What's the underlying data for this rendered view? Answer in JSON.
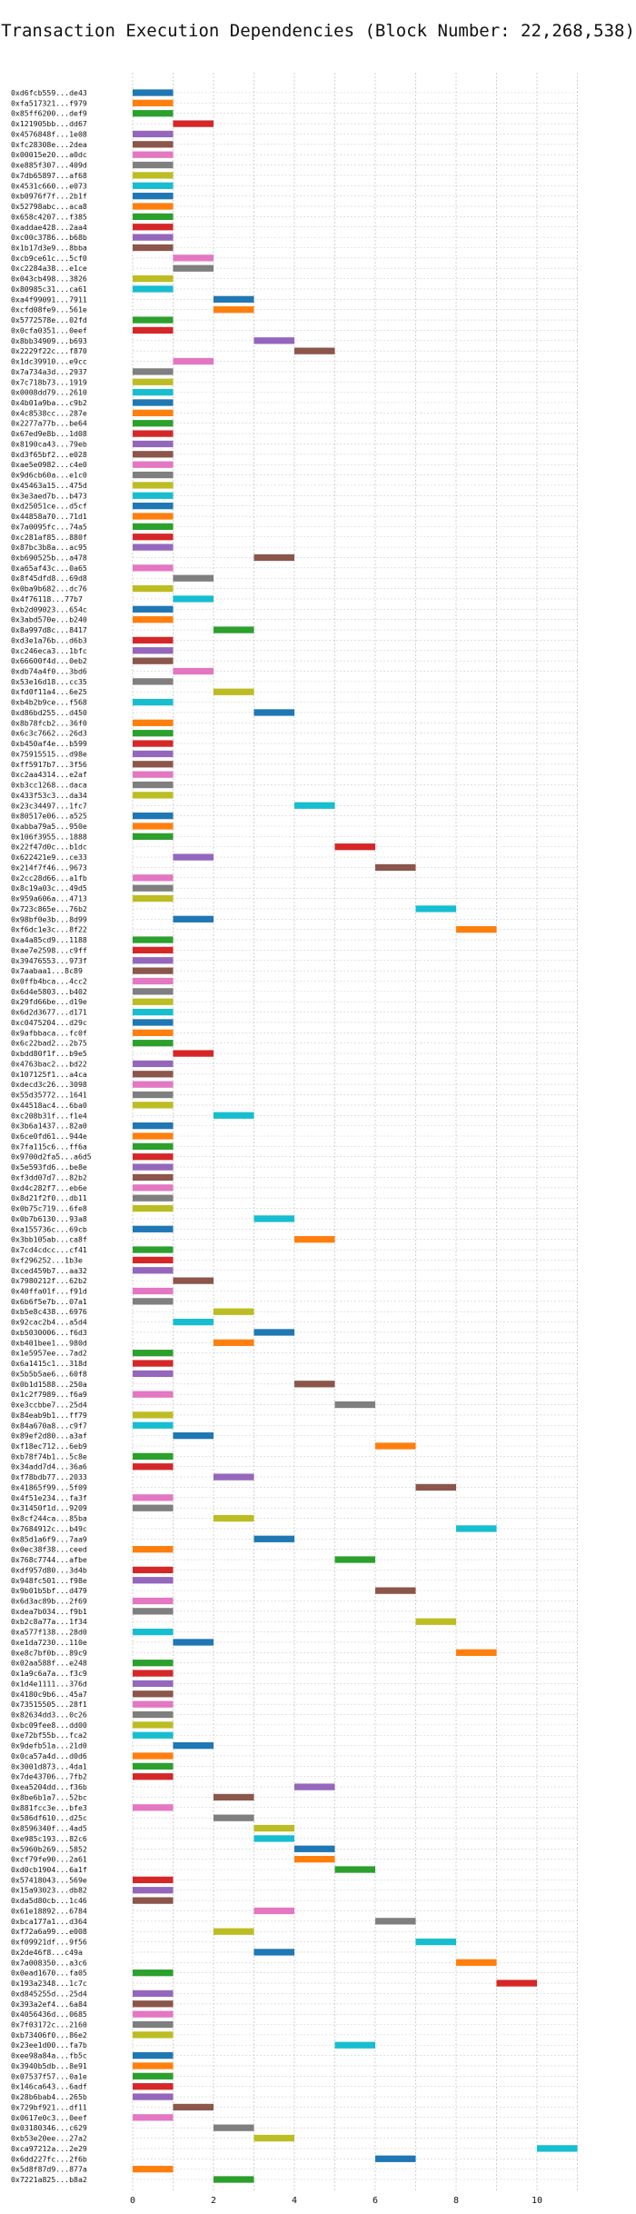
{
  "chart_data": {
    "type": "bar",
    "title": "Transaction Execution Dependencies (Block Number: 22,268,538)",
    "xlabel": "",
    "ylabel": "",
    "xlim": [
      0,
      11
    ],
    "xticks": [
      0,
      2,
      4,
      6,
      8,
      10
    ],
    "grid": true,
    "palette": [
      "#1f77b4",
      "#ff7f0e",
      "#2ca02c",
      "#d62728",
      "#9467bd",
      "#8c564b",
      "#e377c2",
      "#7f7f7f",
      "#bcbd22",
      "#17becf"
    ],
    "transactions": [
      {
        "label": "0xd6fcb559...de43",
        "start": 0,
        "end": 1
      },
      {
        "label": "0xfa517321...f979",
        "start": 0,
        "end": 1
      },
      {
        "label": "0x85ff6200...def9",
        "start": 0,
        "end": 1
      },
      {
        "label": "0x121905bb...dd67",
        "start": 1,
        "end": 2
      },
      {
        "label": "0x4576848f...1e08",
        "start": 0,
        "end": 1
      },
      {
        "label": "0xfc28308e...2dea",
        "start": 0,
        "end": 1
      },
      {
        "label": "0x00015e20...a0dc",
        "start": 0,
        "end": 1
      },
      {
        "label": "0xe885f307...409d",
        "start": 0,
        "end": 1
      },
      {
        "label": "0x7db65897...af68",
        "start": 0,
        "end": 1
      },
      {
        "label": "0x4531c660...e073",
        "start": 0,
        "end": 1
      },
      {
        "label": "0xb0976f7f...2b1f",
        "start": 0,
        "end": 1
      },
      {
        "label": "0x52798abc...aca8",
        "start": 0,
        "end": 1
      },
      {
        "label": "0x658c4207...f385",
        "start": 0,
        "end": 1
      },
      {
        "label": "0xaddae428...2aa4",
        "start": 0,
        "end": 1
      },
      {
        "label": "0xc00c3786...b68b",
        "start": 0,
        "end": 1
      },
      {
        "label": "0x1b17d3e9...8bba",
        "start": 0,
        "end": 1
      },
      {
        "label": "0xcb9ce61c...5cf0",
        "start": 1,
        "end": 2
      },
      {
        "label": "0xc2284a38...e1ce",
        "start": 1,
        "end": 2
      },
      {
        "label": "0x043cb498...3826",
        "start": 0,
        "end": 1
      },
      {
        "label": "0x80985c31...ca61",
        "start": 0,
        "end": 1
      },
      {
        "label": "0xa4f99091...7911",
        "start": 2,
        "end": 3
      },
      {
        "label": "0xcfd08fe9...561e",
        "start": 2,
        "end": 3
      },
      {
        "label": "0x5772578e...02fd",
        "start": 0,
        "end": 1
      },
      {
        "label": "0x0cfa0351...0eef",
        "start": 0,
        "end": 1
      },
      {
        "label": "0x8bb34909...b693",
        "start": 3,
        "end": 4
      },
      {
        "label": "0x2229f22c...f870",
        "start": 4,
        "end": 5
      },
      {
        "label": "0x1dc39910...e9cc",
        "start": 1,
        "end": 2
      },
      {
        "label": "0x7a734a3d...2937",
        "start": 0,
        "end": 1
      },
      {
        "label": "0x7c718b73...1919",
        "start": 0,
        "end": 1
      },
      {
        "label": "0x0008dd79...2610",
        "start": 0,
        "end": 1
      },
      {
        "label": "0x4b01a9ba...c9b2",
        "start": 0,
        "end": 1
      },
      {
        "label": "0x4c8538cc...287e",
        "start": 0,
        "end": 1
      },
      {
        "label": "0x2277a77b...be64",
        "start": 0,
        "end": 1
      },
      {
        "label": "0x67ed9e8b...1d08",
        "start": 0,
        "end": 1
      },
      {
        "label": "0x8190ca43...79eb",
        "start": 0,
        "end": 1
      },
      {
        "label": "0xd3f65bf2...e028",
        "start": 0,
        "end": 1
      },
      {
        "label": "0xae5e0982...c4e0",
        "start": 0,
        "end": 1
      },
      {
        "label": "0x9d6cb60a...e1c0",
        "start": 0,
        "end": 1
      },
      {
        "label": "0x45463a15...475d",
        "start": 0,
        "end": 1
      },
      {
        "label": "0x3e3aed7b...b473",
        "start": 0,
        "end": 1
      },
      {
        "label": "0xd25051ce...d5cf",
        "start": 0,
        "end": 1
      },
      {
        "label": "0x44858a70...71d1",
        "start": 0,
        "end": 1
      },
      {
        "label": "0x7a0095fc...74a5",
        "start": 0,
        "end": 1
      },
      {
        "label": "0xc281af85...880f",
        "start": 0,
        "end": 1
      },
      {
        "label": "0x87bc3b8a...ac95",
        "start": 0,
        "end": 1
      },
      {
        "label": "0xb690525b...a478",
        "start": 3,
        "end": 4
      },
      {
        "label": "0xa65af43c...0a65",
        "start": 0,
        "end": 1
      },
      {
        "label": "0x8f45dfd8...69d8",
        "start": 1,
        "end": 2
      },
      {
        "label": "0x0ba9b682...dc76",
        "start": 0,
        "end": 1
      },
      {
        "label": "0x4f76118...77b7",
        "start": 1,
        "end": 2
      },
      {
        "label": "0xb2d09023...654c",
        "start": 0,
        "end": 1
      },
      {
        "label": "0x3abd570e...b240",
        "start": 0,
        "end": 1
      },
      {
        "label": "0x8a997d8c...8417",
        "start": 2,
        "end": 3
      },
      {
        "label": "0xd3e1a76b...d6b3",
        "start": 0,
        "end": 1
      },
      {
        "label": "0xc246eca3...1bfc",
        "start": 0,
        "end": 1
      },
      {
        "label": "0x66600f4d...0eb2",
        "start": 0,
        "end": 1
      },
      {
        "label": "0xdb74a4f0...3bd6",
        "start": 1,
        "end": 2
      },
      {
        "label": "0x53e16d18...cc35",
        "start": 0,
        "end": 1
      },
      {
        "label": "0xfd0f11a4...6e25",
        "start": 2,
        "end": 3
      },
      {
        "label": "0xb4b2b9ce...f568",
        "start": 0,
        "end": 1
      },
      {
        "label": "0xd86bd255...d450",
        "start": 3,
        "end": 4
      },
      {
        "label": "0x8b78fcb2...36f0",
        "start": 0,
        "end": 1
      },
      {
        "label": "0x6c3c7662...26d3",
        "start": 0,
        "end": 1
      },
      {
        "label": "0xb450af4e...b599",
        "start": 0,
        "end": 1
      },
      {
        "label": "0x75915515...d98e",
        "start": 0,
        "end": 1
      },
      {
        "label": "0xff5917b7...3f56",
        "start": 0,
        "end": 1
      },
      {
        "label": "0xc2aa4314...e2af",
        "start": 0,
        "end": 1
      },
      {
        "label": "0xb3cc1268...daca",
        "start": 0,
        "end": 1
      },
      {
        "label": "0x433f53c3...da34",
        "start": 0,
        "end": 1
      },
      {
        "label": "0x23c34497...1fc7",
        "start": 4,
        "end": 5
      },
      {
        "label": "0x80517e06...a525",
        "start": 0,
        "end": 1
      },
      {
        "label": "0xabba79a5...950e",
        "start": 0,
        "end": 1
      },
      {
        "label": "0x106f3955...1888",
        "start": 0,
        "end": 1
      },
      {
        "label": "0x22f47d0c...b1dc",
        "start": 5,
        "end": 6
      },
      {
        "label": "0x622421e9...ce33",
        "start": 1,
        "end": 2
      },
      {
        "label": "0x214f7f46...9673",
        "start": 6,
        "end": 7
      },
      {
        "label": "0x2cc28d66...a1fb",
        "start": 0,
        "end": 1
      },
      {
        "label": "0x8c19a03c...49d5",
        "start": 0,
        "end": 1
      },
      {
        "label": "0x959a606a...4713",
        "start": 0,
        "end": 1
      },
      {
        "label": "0x723c865e...76b2",
        "start": 7,
        "end": 8
      },
      {
        "label": "0x98bf0e3b...8d99",
        "start": 1,
        "end": 2
      },
      {
        "label": "0xf6dc1e3c...8f22",
        "start": 8,
        "end": 9
      },
      {
        "label": "0xa4a85cd9...1188",
        "start": 0,
        "end": 1
      },
      {
        "label": "0xae7e2598...c9ff",
        "start": 0,
        "end": 1
      },
      {
        "label": "0x39476553...973f",
        "start": 0,
        "end": 1
      },
      {
        "label": "0x7aabaa1...8c89",
        "start": 0,
        "end": 1
      },
      {
        "label": "0x0ffb4bca...4cc2",
        "start": 0,
        "end": 1
      },
      {
        "label": "0x6d4e5803...b402",
        "start": 0,
        "end": 1
      },
      {
        "label": "0x29fd66be...d19e",
        "start": 0,
        "end": 1
      },
      {
        "label": "0x6d2d3677...d171",
        "start": 0,
        "end": 1
      },
      {
        "label": "0xc0475204...d29c",
        "start": 0,
        "end": 1
      },
      {
        "label": "0x9afbbaca...fc0f",
        "start": 0,
        "end": 1
      },
      {
        "label": "0x6c22bad2...2b75",
        "start": 0,
        "end": 1
      },
      {
        "label": "0xbdd80f1f...b9e5",
        "start": 1,
        "end": 2
      },
      {
        "label": "0x4763bac2...bd22",
        "start": 0,
        "end": 1
      },
      {
        "label": "0x107125f1...a4ca",
        "start": 0,
        "end": 1
      },
      {
        "label": "0xdecd3c26...3098",
        "start": 0,
        "end": 1
      },
      {
        "label": "0x55d35772...1641",
        "start": 0,
        "end": 1
      },
      {
        "label": "0x44518ac4...6ba0",
        "start": 0,
        "end": 1
      },
      {
        "label": "0xc208b31f...f1e4",
        "start": 2,
        "end": 3
      },
      {
        "label": "0x3b6a1437...82a0",
        "start": 0,
        "end": 1
      },
      {
        "label": "0x6ce0fd61...944e",
        "start": 0,
        "end": 1
      },
      {
        "label": "0x7fa115c6...ff6a",
        "start": 0,
        "end": 1
      },
      {
        "label": "0x9700d2fa5...a6d5",
        "start": 0,
        "end": 1
      },
      {
        "label": "0x5e593fd6...be8e",
        "start": 0,
        "end": 1
      },
      {
        "label": "0xf3dd07d7...82b2",
        "start": 0,
        "end": 1
      },
      {
        "label": "0xd4c282f7...eb6e",
        "start": 0,
        "end": 1
      },
      {
        "label": "0x8d21f2f0...db11",
        "start": 0,
        "end": 1
      },
      {
        "label": "0x0b75c719...6fe8",
        "start": 0,
        "end": 1
      },
      {
        "label": "0x0b7b6130...93a8",
        "start": 3,
        "end": 4
      },
      {
        "label": "0xa155736c...69cb",
        "start": 0,
        "end": 1
      },
      {
        "label": "0x3bb105ab...ca8f",
        "start": 4,
        "end": 5
      },
      {
        "label": "0x7cd4cdcc...cf41",
        "start": 0,
        "end": 1
      },
      {
        "label": "0xf296252...1b3e",
        "start": 0,
        "end": 1
      },
      {
        "label": "0xced459b7...aa32",
        "start": 0,
        "end": 1
      },
      {
        "label": "0x7980212f...62b2",
        "start": 1,
        "end": 2
      },
      {
        "label": "0x40ffa01f...f91d",
        "start": 0,
        "end": 1
      },
      {
        "label": "0x6b6f5e7b...07a1",
        "start": 0,
        "end": 1
      },
      {
        "label": "0xb5e8c438...6976",
        "start": 2,
        "end": 3
      },
      {
        "label": "0x92cac2b4...a5d4",
        "start": 1,
        "end": 2
      },
      {
        "label": "0xb5030006...f6d3",
        "start": 3,
        "end": 4
      },
      {
        "label": "0xb401bee1...980d",
        "start": 2,
        "end": 3
      },
      {
        "label": "0x1e5957ee...7ad2",
        "start": 0,
        "end": 1
      },
      {
        "label": "0x6a1415c1...318d",
        "start": 0,
        "end": 1
      },
      {
        "label": "0x5b5b5ae6...60f8",
        "start": 0,
        "end": 1
      },
      {
        "label": "0x0b1d1588...250a",
        "start": 4,
        "end": 5
      },
      {
        "label": "0x1c2f7989...f6a9",
        "start": 0,
        "end": 1
      },
      {
        "label": "0xe3ccbbe7...25d4",
        "start": 5,
        "end": 6
      },
      {
        "label": "0x84eab9b1...ff79",
        "start": 0,
        "end": 1
      },
      {
        "label": "0x84a670a8...c9f7",
        "start": 0,
        "end": 1
      },
      {
        "label": "0x89ef2d80...a3af",
        "start": 1,
        "end": 2
      },
      {
        "label": "0xf18ec712...6eb9",
        "start": 6,
        "end": 7
      },
      {
        "label": "0xb78f74b1...5c8e",
        "start": 0,
        "end": 1
      },
      {
        "label": "0x34add7d4...36a6",
        "start": 0,
        "end": 1
      },
      {
        "label": "0xf78bdb77...2033",
        "start": 2,
        "end": 3
      },
      {
        "label": "0x41865f99...5f09",
        "start": 7,
        "end": 8
      },
      {
        "label": "0x4f51e234...fa3f",
        "start": 0,
        "end": 1
      },
      {
        "label": "0x31450f1d...9209",
        "start": 0,
        "end": 1
      },
      {
        "label": "0x8cf244ca...85ba",
        "start": 2,
        "end": 3
      },
      {
        "label": "0x7684912c...b49c",
        "start": 8,
        "end": 9
      },
      {
        "label": "0x85d1a6f9...7aa9",
        "start": 3,
        "end": 4
      },
      {
        "label": "0x0ec38f38...ceed",
        "start": 0,
        "end": 1
      },
      {
        "label": "0x768c7744...afbe",
        "start": 5,
        "end": 6
      },
      {
        "label": "0xdf957d80...3d4b",
        "start": 0,
        "end": 1
      },
      {
        "label": "0x948fc501...f98e",
        "start": 0,
        "end": 1
      },
      {
        "label": "0x9b01b5bf...d479",
        "start": 6,
        "end": 7
      },
      {
        "label": "0x6d3ac89b...2f69",
        "start": 0,
        "end": 1
      },
      {
        "label": "0xdea7b034...f9b1",
        "start": 0,
        "end": 1
      },
      {
        "label": "0xb2c8a77a...1f34",
        "start": 7,
        "end": 8
      },
      {
        "label": "0xa577f138...28d0",
        "start": 0,
        "end": 1
      },
      {
        "label": "0xe1da7230...110e",
        "start": 1,
        "end": 2
      },
      {
        "label": "0xe8c7bf0b...89c9",
        "start": 8,
        "end": 9
      },
      {
        "label": "0x02aa588f...e248",
        "start": 0,
        "end": 1
      },
      {
        "label": "0x1a9c6a7a...f3c9",
        "start": 0,
        "end": 1
      },
      {
        "label": "0x1d4e1111...376d",
        "start": 0,
        "end": 1
      },
      {
        "label": "0x4180c9b6...45a7",
        "start": 0,
        "end": 1
      },
      {
        "label": "0x73515505...28f1",
        "start": 0,
        "end": 1
      },
      {
        "label": "0x82634dd3...0c26",
        "start": 0,
        "end": 1
      },
      {
        "label": "0xbc09fee8...dd00",
        "start": 0,
        "end": 1
      },
      {
        "label": "0xe72bf55b...fca2",
        "start": 0,
        "end": 1
      },
      {
        "label": "0x9defb51a...21d0",
        "start": 1,
        "end": 2
      },
      {
        "label": "0x0ca57a4d...d0d6",
        "start": 0,
        "end": 1
      },
      {
        "label": "0x3001d873...4da1",
        "start": 0,
        "end": 1
      },
      {
        "label": "0x7de43706...7fb2",
        "start": 0,
        "end": 1
      },
      {
        "label": "0xea5204dd...f36b",
        "start": 4,
        "end": 5
      },
      {
        "label": "0x8be6b1a7...52bc",
        "start": 2,
        "end": 3
      },
      {
        "label": "0x881fcc3e...bfe3",
        "start": 0,
        "end": 1
      },
      {
        "label": "0x586df610...d25c",
        "start": 2,
        "end": 3
      },
      {
        "label": "0x8596340f...4ad5",
        "start": 3,
        "end": 4
      },
      {
        "label": "0xe985c193...82c6",
        "start": 3,
        "end": 4
      },
      {
        "label": "0x5960b269...5852",
        "start": 4,
        "end": 5
      },
      {
        "label": "0xcf79fe90...2a61",
        "start": 4,
        "end": 5
      },
      {
        "label": "0xd0cb1904...6a1f",
        "start": 5,
        "end": 6
      },
      {
        "label": "0x57418043...569e",
        "start": 0,
        "end": 1
      },
      {
        "label": "0x15a93023...db82",
        "start": 0,
        "end": 1
      },
      {
        "label": "0xda5d80cb...1c46",
        "start": 0,
        "end": 1
      },
      {
        "label": "0x61e18892...6784",
        "start": 3,
        "end": 4
      },
      {
        "label": "0xbca177a1...d364",
        "start": 6,
        "end": 7
      },
      {
        "label": "0xf72a6a99...e008",
        "start": 2,
        "end": 3
      },
      {
        "label": "0xf09921df...9f56",
        "start": 7,
        "end": 8
      },
      {
        "label": "0x2de46f8...c49a",
        "start": 3,
        "end": 4
      },
      {
        "label": "0x7a008350...a3c6",
        "start": 8,
        "end": 9
      },
      {
        "label": "0x0ead1670...fa05",
        "start": 0,
        "end": 1
      },
      {
        "label": "0x193a2348...1c7c",
        "start": 9,
        "end": 10
      },
      {
        "label": "0xd845255d...25d4",
        "start": 0,
        "end": 1
      },
      {
        "label": "0x393a2ef4...6a84",
        "start": 0,
        "end": 1
      },
      {
        "label": "0x4056436d...0685",
        "start": 0,
        "end": 1
      },
      {
        "label": "0x7f03172c...2160",
        "start": 0,
        "end": 1
      },
      {
        "label": "0xb73406f0...86e2",
        "start": 0,
        "end": 1
      },
      {
        "label": "0x23ee1d00...fa7b",
        "start": 5,
        "end": 6
      },
      {
        "label": "0xee98a84a...fb5c",
        "start": 0,
        "end": 1
      },
      {
        "label": "0x3940b5db...8e91",
        "start": 0,
        "end": 1
      },
      {
        "label": "0x07537f57...0a1e",
        "start": 0,
        "end": 1
      },
      {
        "label": "0x146ca643...6adf",
        "start": 0,
        "end": 1
      },
      {
        "label": "0x28b6bab4...265b",
        "start": 0,
        "end": 1
      },
      {
        "label": "0x729bf921...df11",
        "start": 1,
        "end": 2
      },
      {
        "label": "0x0617e0c3...0eef",
        "start": 0,
        "end": 1
      },
      {
        "label": "0x03180346...c629",
        "start": 2,
        "end": 3
      },
      {
        "label": "0xb53e20ee...27a2",
        "start": 3,
        "end": 4
      },
      {
        "label": "0xca97212a...2e29",
        "start": 10,
        "end": 11
      },
      {
        "label": "0x6dd227fc...2f6b",
        "start": 6,
        "end": 7
      },
      {
        "label": "0x5d8f87d9...877a",
        "start": 0,
        "end": 1
      },
      {
        "label": "0x7221a825...b8a2",
        "start": 2,
        "end": 3
      }
    ]
  }
}
